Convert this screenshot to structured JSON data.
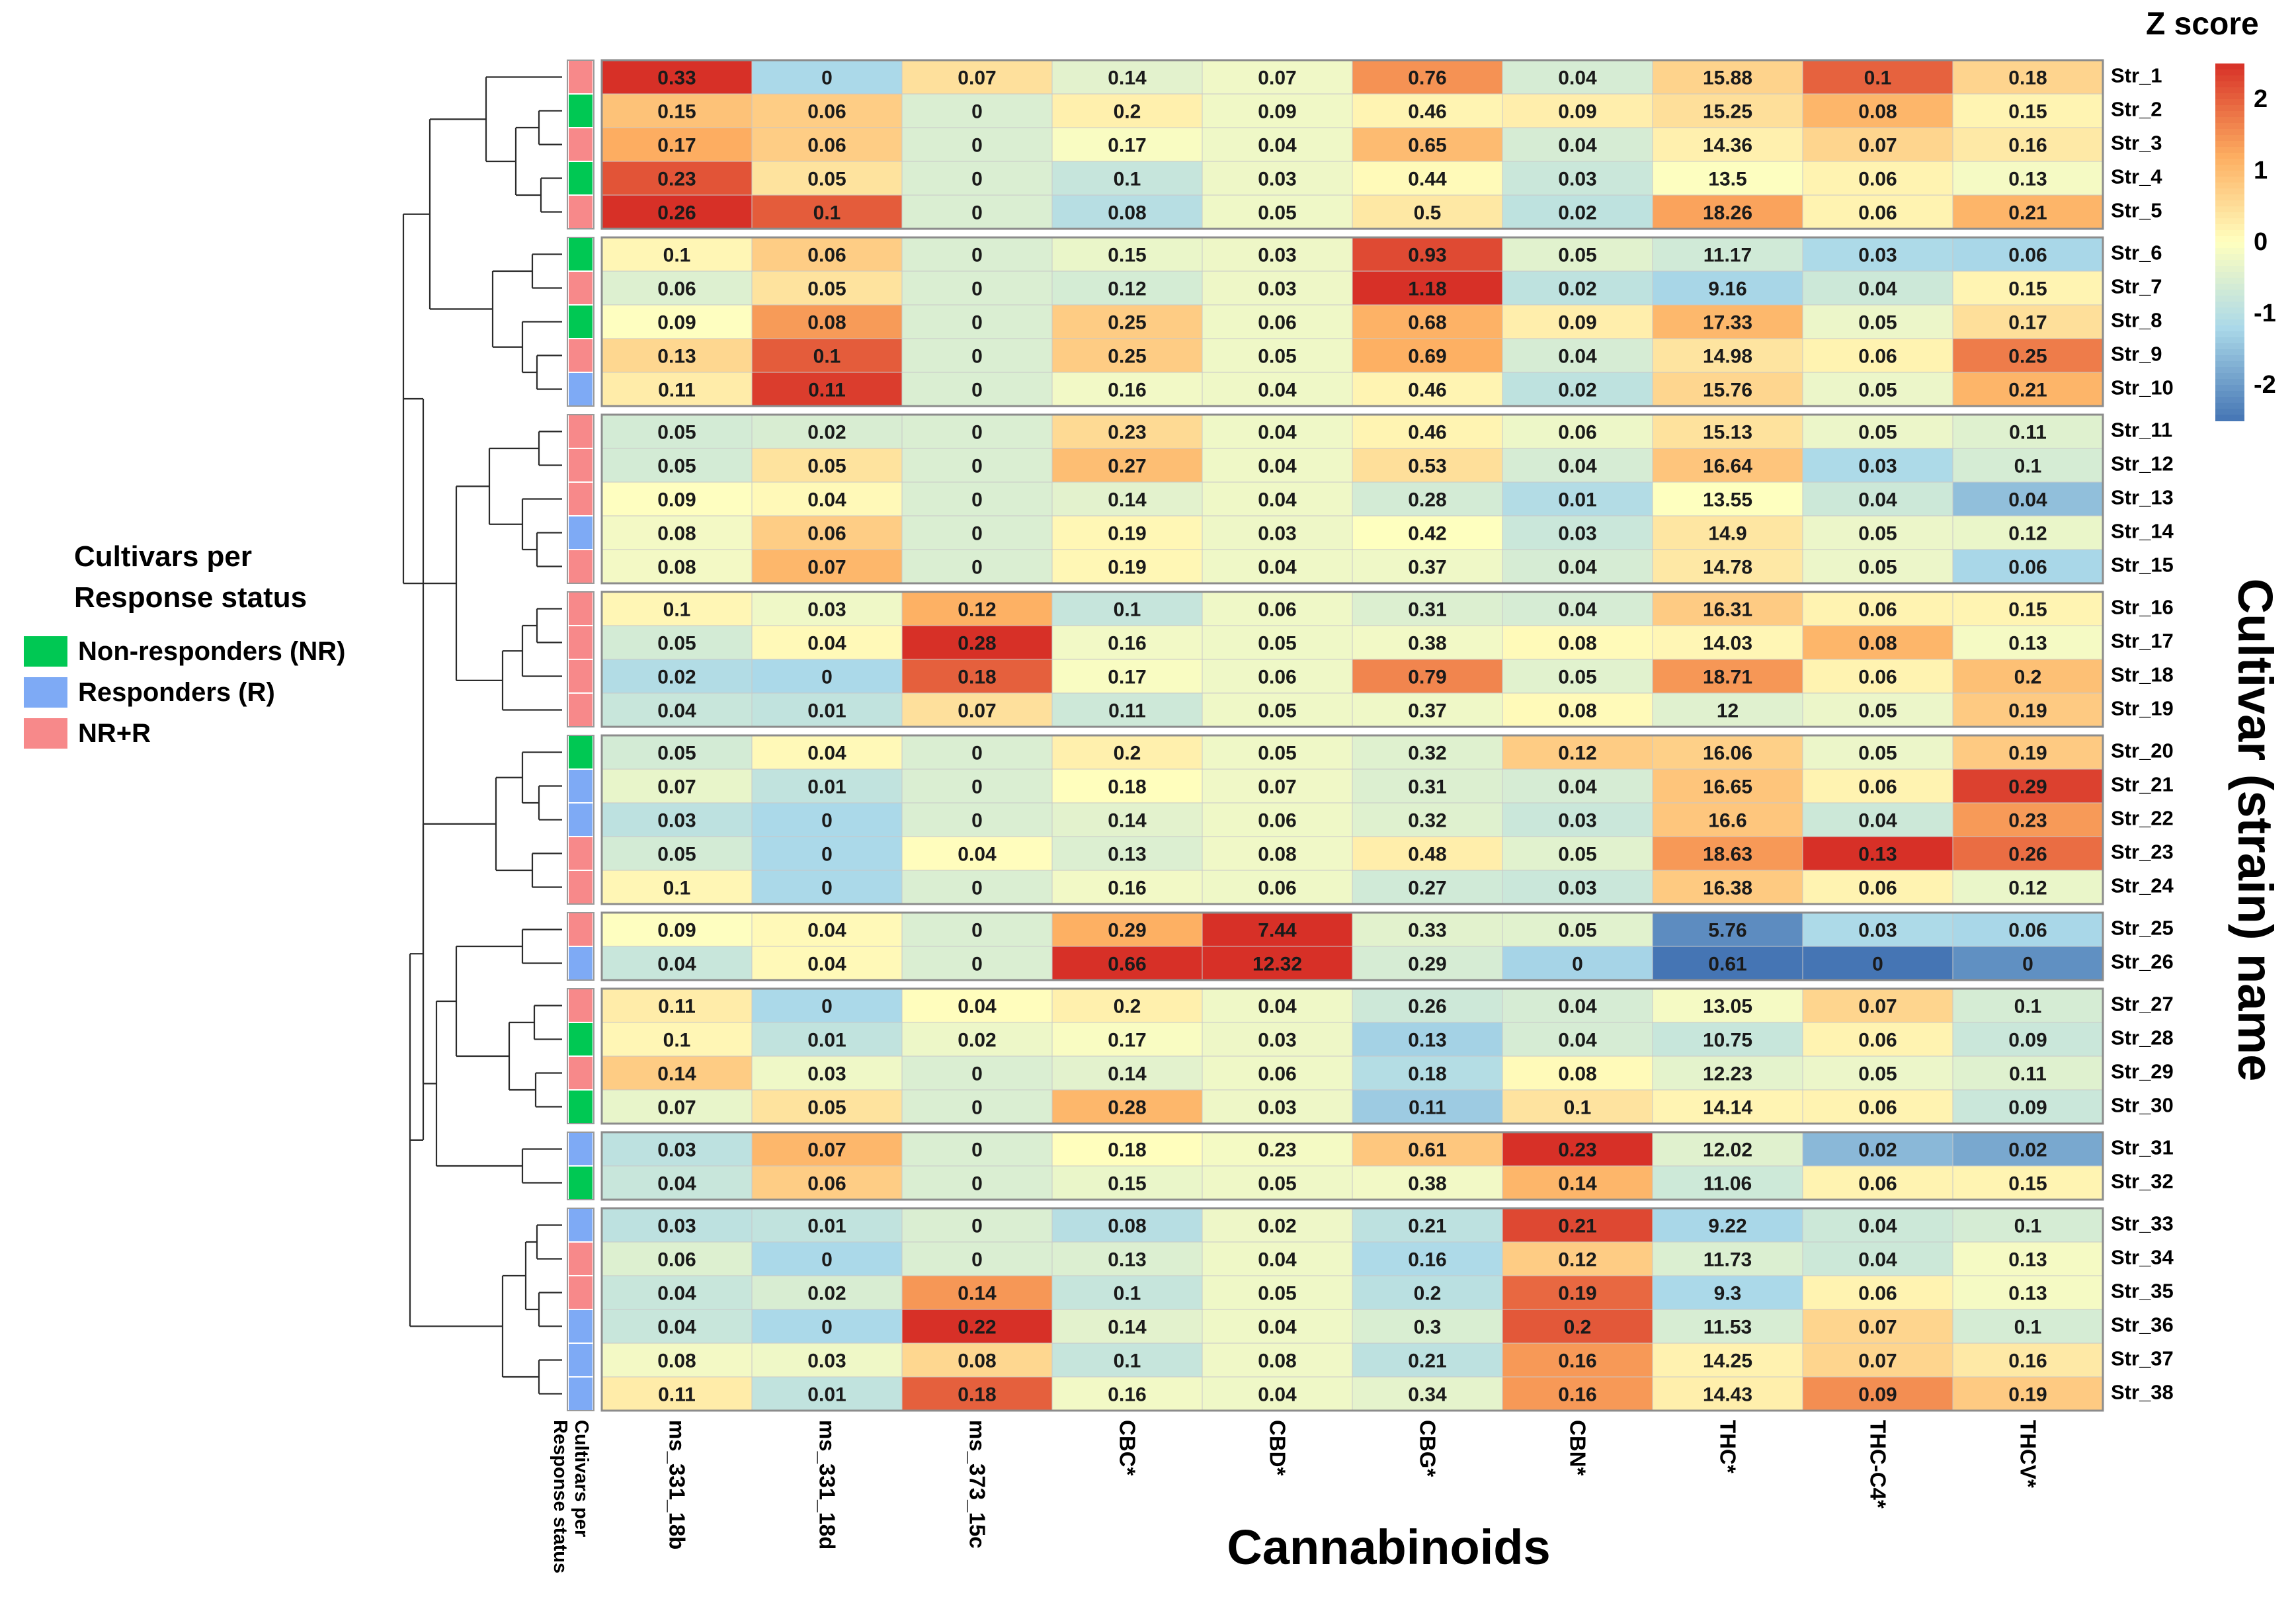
{
  "chart_data": {
    "type": "heatmap",
    "title": "",
    "xlabel": "Cannabinoids",
    "ylabel": "Cultivar (strain) name",
    "status_column_label": "Cultivars per Response status",
    "columns": [
      "ms_331_18b",
      "ms_331_18d",
      "ms_373_15c",
      "CBC*",
      "CBD*",
      "CBG*",
      "CBN*",
      "THC*",
      "THC-C4*",
      "THCV*"
    ],
    "rows": [
      "Str_1",
      "Str_2",
      "Str_3",
      "Str_4",
      "Str_5",
      "Str_6",
      "Str_7",
      "Str_8",
      "Str_9",
      "Str_10",
      "Str_11",
      "Str_12",
      "Str_13",
      "Str_14",
      "Str_15",
      "Str_16",
      "Str_17",
      "Str_18",
      "Str_19",
      "Str_20",
      "Str_21",
      "Str_22",
      "Str_23",
      "Str_24",
      "Str_25",
      "Str_26",
      "Str_27",
      "Str_28",
      "Str_29",
      "Str_30",
      "Str_31",
      "Str_32",
      "Str_33",
      "Str_34",
      "Str_35",
      "Str_36",
      "Str_37",
      "Str_38"
    ],
    "row_clusters": [
      [
        0,
        4
      ],
      [
        5,
        9
      ],
      [
        10,
        14
      ],
      [
        15,
        18
      ],
      [
        19,
        23
      ],
      [
        24,
        25
      ],
      [
        26,
        29
      ],
      [
        30,
        31
      ],
      [
        32,
        37
      ]
    ],
    "status": [
      "NR+R",
      "NR",
      "NR+R",
      "NR",
      "NR+R",
      "NR",
      "NR+R",
      "NR",
      "NR+R",
      "R",
      "NR+R",
      "NR+R",
      "NR+R",
      "R",
      "NR+R",
      "NR+R",
      "NR+R",
      "NR+R",
      "NR+R",
      "NR",
      "R",
      "R",
      "NR+R",
      "NR+R",
      "NR+R",
      "R",
      "NR+R",
      "NR",
      "NR+R",
      "NR",
      "R",
      "NR",
      "R",
      "NR+R",
      "NR+R",
      "R",
      "R",
      "R"
    ],
    "values": [
      [
        "0.33",
        "0",
        "0.07",
        "0.14",
        "0.07",
        "0.76",
        "0.04",
        "15.88",
        "0.1",
        "0.18"
      ],
      [
        "0.15",
        "0.06",
        "0",
        "0.2",
        "0.09",
        "0.46",
        "0.09",
        "15.25",
        "0.08",
        "0.15"
      ],
      [
        "0.17",
        "0.06",
        "0",
        "0.17",
        "0.04",
        "0.65",
        "0.04",
        "14.36",
        "0.07",
        "0.16"
      ],
      [
        "0.23",
        "0.05",
        "0",
        "0.1",
        "0.03",
        "0.44",
        "0.03",
        "13.5",
        "0.06",
        "0.13"
      ],
      [
        "0.26",
        "0.1",
        "0",
        "0.08",
        "0.05",
        "0.5",
        "0.02",
        "18.26",
        "0.06",
        "0.21"
      ],
      [
        "0.1",
        "0.06",
        "0",
        "0.15",
        "0.03",
        "0.93",
        "0.05",
        "11.17",
        "0.03",
        "0.06"
      ],
      [
        "0.06",
        "0.05",
        "0",
        "0.12",
        "0.03",
        "1.18",
        "0.02",
        "9.16",
        "0.04",
        "0.15"
      ],
      [
        "0.09",
        "0.08",
        "0",
        "0.25",
        "0.06",
        "0.68",
        "0.09",
        "17.33",
        "0.05",
        "0.17"
      ],
      [
        "0.13",
        "0.1",
        "0",
        "0.25",
        "0.05",
        "0.69",
        "0.04",
        "14.98",
        "0.06",
        "0.25"
      ],
      [
        "0.11",
        "0.11",
        "0",
        "0.16",
        "0.04",
        "0.46",
        "0.02",
        "15.76",
        "0.05",
        "0.21"
      ],
      [
        "0.05",
        "0.02",
        "0",
        "0.23",
        "0.04",
        "0.46",
        "0.06",
        "15.13",
        "0.05",
        "0.11"
      ],
      [
        "0.05",
        "0.05",
        "0",
        "0.27",
        "0.04",
        "0.53",
        "0.04",
        "16.64",
        "0.03",
        "0.1"
      ],
      [
        "0.09",
        "0.04",
        "0",
        "0.14",
        "0.04",
        "0.28",
        "0.01",
        "13.55",
        "0.04",
        "0.04"
      ],
      [
        "0.08",
        "0.06",
        "0",
        "0.19",
        "0.03",
        "0.42",
        "0.03",
        "14.9",
        "0.05",
        "0.12"
      ],
      [
        "0.08",
        "0.07",
        "0",
        "0.19",
        "0.04",
        "0.37",
        "0.04",
        "14.78",
        "0.05",
        "0.06"
      ],
      [
        "0.1",
        "0.03",
        "0.12",
        "0.1",
        "0.06",
        "0.31",
        "0.04",
        "16.31",
        "0.06",
        "0.15"
      ],
      [
        "0.05",
        "0.04",
        "0.28",
        "0.16",
        "0.05",
        "0.38",
        "0.08",
        "14.03",
        "0.08",
        "0.13"
      ],
      [
        "0.02",
        "0",
        "0.18",
        "0.17",
        "0.06",
        "0.79",
        "0.05",
        "18.71",
        "0.06",
        "0.2"
      ],
      [
        "0.04",
        "0.01",
        "0.07",
        "0.11",
        "0.05",
        "0.37",
        "0.08",
        "12",
        "0.05",
        "0.19"
      ],
      [
        "0.05",
        "0.04",
        "0",
        "0.2",
        "0.05",
        "0.32",
        "0.12",
        "16.06",
        "0.05",
        "0.19"
      ],
      [
        "0.07",
        "0.01",
        "0",
        "0.18",
        "0.07",
        "0.31",
        "0.04",
        "16.65",
        "0.06",
        "0.29"
      ],
      [
        "0.03",
        "0",
        "0",
        "0.14",
        "0.06",
        "0.32",
        "0.03",
        "16.6",
        "0.04",
        "0.23"
      ],
      [
        "0.05",
        "0",
        "0.04",
        "0.13",
        "0.08",
        "0.48",
        "0.05",
        "18.63",
        "0.13",
        "0.26"
      ],
      [
        "0.1",
        "0",
        "0",
        "0.16",
        "0.06",
        "0.27",
        "0.03",
        "16.38",
        "0.06",
        "0.12"
      ],
      [
        "0.09",
        "0.04",
        "0",
        "0.29",
        "7.44",
        "0.33",
        "0.05",
        "5.76",
        "0.03",
        "0.06"
      ],
      [
        "0.04",
        "0.04",
        "0",
        "0.66",
        "12.32",
        "0.29",
        "0",
        "0.61",
        "0",
        "0"
      ],
      [
        "0.11",
        "0",
        "0.04",
        "0.2",
        "0.04",
        "0.26",
        "0.04",
        "13.05",
        "0.07",
        "0.1"
      ],
      [
        "0.1",
        "0.01",
        "0.02",
        "0.17",
        "0.03",
        "0.13",
        "0.04",
        "10.75",
        "0.06",
        "0.09"
      ],
      [
        "0.14",
        "0.03",
        "0",
        "0.14",
        "0.06",
        "0.18",
        "0.08",
        "12.23",
        "0.05",
        "0.11"
      ],
      [
        "0.07",
        "0.05",
        "0",
        "0.28",
        "0.03",
        "0.11",
        "0.1",
        "14.14",
        "0.06",
        "0.09"
      ],
      [
        "0.03",
        "0.07",
        "0",
        "0.18",
        "0.23",
        "0.61",
        "0.23",
        "12.02",
        "0.02",
        "0.02"
      ],
      [
        "0.04",
        "0.06",
        "0",
        "0.15",
        "0.05",
        "0.38",
        "0.14",
        "11.06",
        "0.06",
        "0.15"
      ],
      [
        "0.03",
        "0.01",
        "0",
        "0.08",
        "0.02",
        "0.21",
        "0.21",
        "9.22",
        "0.04",
        "0.1"
      ],
      [
        "0.06",
        "0",
        "0",
        "0.13",
        "0.04",
        "0.16",
        "0.12",
        "11.73",
        "0.04",
        "0.13"
      ],
      [
        "0.04",
        "0.02",
        "0.14",
        "0.1",
        "0.05",
        "0.2",
        "0.19",
        "9.3",
        "0.06",
        "0.13"
      ],
      [
        "0.04",
        "0",
        "0.22",
        "0.14",
        "0.04",
        "0.3",
        "0.2",
        "11.53",
        "0.07",
        "0.1"
      ],
      [
        "0.08",
        "0.03",
        "0.08",
        "0.1",
        "0.08",
        "0.21",
        "0.16",
        "14.25",
        "0.07",
        "0.16"
      ],
      [
        "0.11",
        "0.01",
        "0.18",
        "0.16",
        "0.04",
        "0.34",
        "0.16",
        "14.43",
        "0.09",
        "0.19"
      ]
    ],
    "colorbar": {
      "title": "Z score",
      "range": [
        -2.5,
        2.5
      ],
      "ticks": [
        "2",
        "1",
        "0",
        "-1",
        "-2"
      ],
      "tick_values": [
        2,
        1,
        0,
        -1,
        -2
      ]
    },
    "legend": {
      "title": [
        "Cultivars per",
        "Response status"
      ],
      "items": [
        {
          "label": "Non-responders (NR)",
          "key": "NR",
          "color": "#00c853"
        },
        {
          "label": "Responders (R)",
          "key": "R",
          "color": "#7eaaf5"
        },
        {
          "label": "NR+R",
          "key": "NR+R",
          "color": "#f7898a"
        }
      ]
    },
    "colors": {
      "low": "#4575b4",
      "mid": "#ffffbf",
      "high": "#d73027"
    }
  }
}
